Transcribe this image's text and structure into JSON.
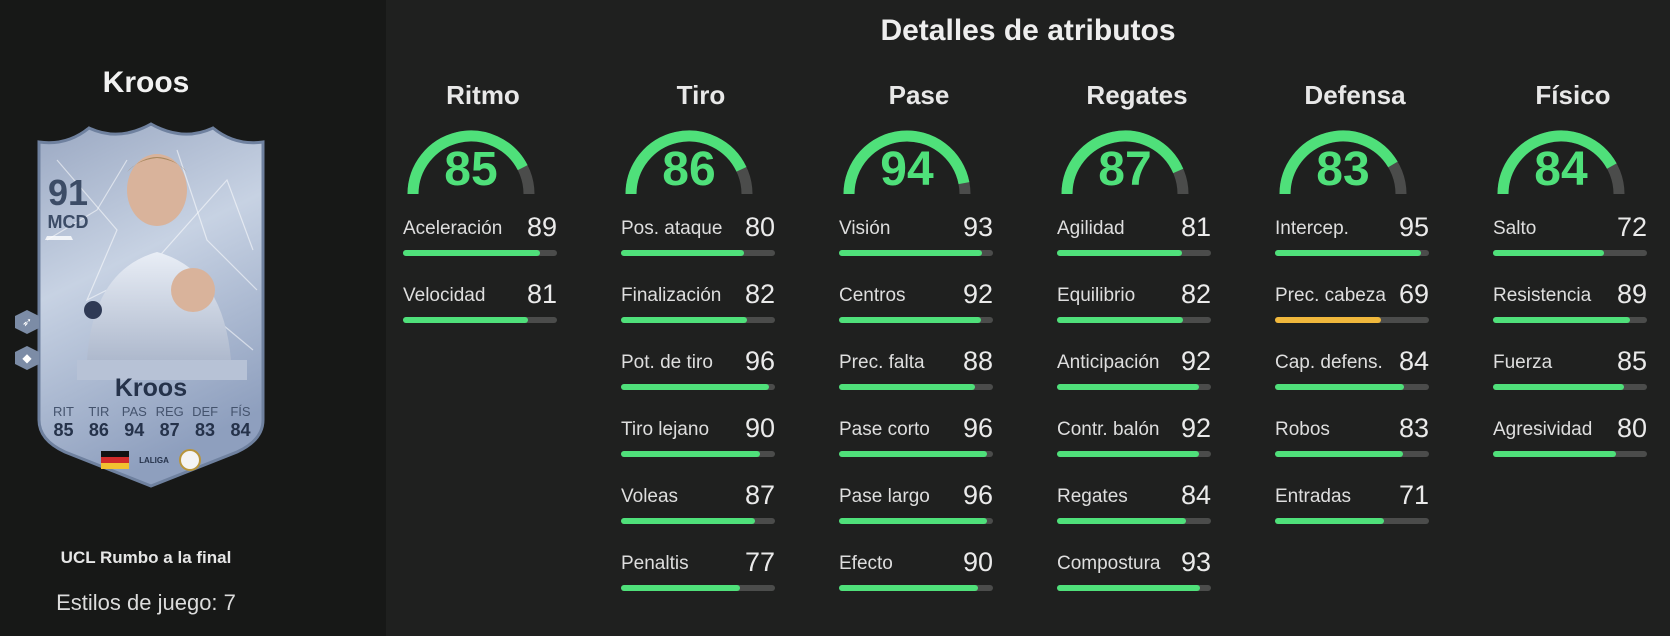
{
  "player": {
    "name": "Kroos",
    "card_name": "Kroos",
    "rating": "91",
    "position": "MCD",
    "edition": "UCL Rumbo a la final",
    "playstyles": "Estilos de juego: 7",
    "card_stats": [
      {
        "label": "RIT",
        "value": "85"
      },
      {
        "label": "TIR",
        "value": "86"
      },
      {
        "label": "PAS",
        "value": "94"
      },
      {
        "label": "REG",
        "value": "87"
      },
      {
        "label": "DEF",
        "value": "83"
      },
      {
        "label": "FÍS",
        "value": "84"
      }
    ],
    "league_badge": "LALIGA",
    "club_badge": "RM"
  },
  "section_title": "Detalles de atributos",
  "colors": {
    "high": "#4fe07a",
    "mid": "#f0b83c",
    "track": "#4b4c4b"
  },
  "categories": [
    {
      "name": "Ritmo",
      "value": "85",
      "attrs": [
        {
          "name": "Aceleración",
          "value": "89"
        },
        {
          "name": "Velocidad",
          "value": "81"
        }
      ]
    },
    {
      "name": "Tiro",
      "value": "86",
      "attrs": [
        {
          "name": "Pos. ataque",
          "value": "80"
        },
        {
          "name": "Finalización",
          "value": "82"
        },
        {
          "name": "Pot. de tiro",
          "value": "96"
        },
        {
          "name": "Tiro lejano",
          "value": "90"
        },
        {
          "name": "Voleas",
          "value": "87"
        },
        {
          "name": "Penaltis",
          "value": "77"
        }
      ]
    },
    {
      "name": "Pase",
      "value": "94",
      "attrs": [
        {
          "name": "Visión",
          "value": "93"
        },
        {
          "name": "Centros",
          "value": "92"
        },
        {
          "name": "Prec. falta",
          "value": "88"
        },
        {
          "name": "Pase corto",
          "value": "96"
        },
        {
          "name": "Pase largo",
          "value": "96"
        },
        {
          "name": "Efecto",
          "value": "90"
        }
      ]
    },
    {
      "name": "Regates",
      "value": "87",
      "attrs": [
        {
          "name": "Agilidad",
          "value": "81"
        },
        {
          "name": "Equilibrio",
          "value": "82"
        },
        {
          "name": "Anticipación",
          "value": "92"
        },
        {
          "name": "Contr. balón",
          "value": "92"
        },
        {
          "name": "Regates",
          "value": "84"
        },
        {
          "name": "Compostura",
          "value": "93"
        }
      ]
    },
    {
      "name": "Defensa",
      "value": "83",
      "attrs": [
        {
          "name": "Intercep.",
          "value": "95"
        },
        {
          "name": "Prec. cabeza",
          "value": "69"
        },
        {
          "name": "Cap. defens.",
          "value": "84"
        },
        {
          "name": "Robos",
          "value": "83"
        },
        {
          "name": "Entradas",
          "value": "71"
        }
      ]
    },
    {
      "name": "Físico",
      "value": "84",
      "attrs": [
        {
          "name": "Salto",
          "value": "72"
        },
        {
          "name": "Resistencia",
          "value": "89"
        },
        {
          "name": "Fuerza",
          "value": "85"
        },
        {
          "name": "Agresividad",
          "value": "80"
        }
      ]
    }
  ]
}
